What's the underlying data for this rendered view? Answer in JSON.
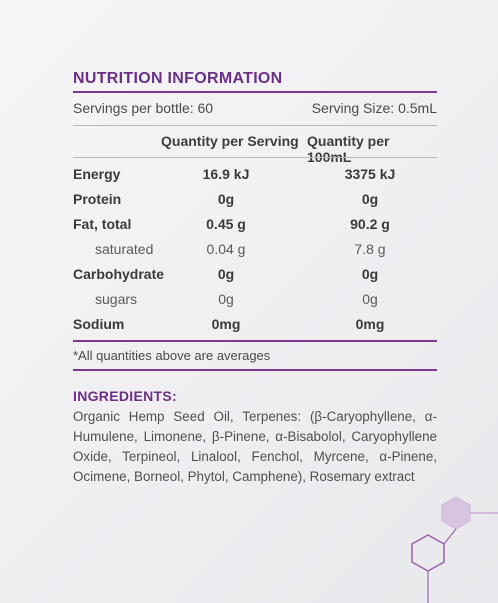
{
  "nutrition": {
    "title": "NUTRITION INFORMATION",
    "servings_per_bottle": "Servings per bottle: 60",
    "serving_size": "Serving Size: 0.5mL",
    "col_per_serving": "Quantity per Serving",
    "col_per_100ml": "Quantity per 100mL",
    "rows": [
      {
        "name": "Energy",
        "per_serving": "16.9 kJ",
        "per_100ml": "3375 kJ"
      },
      {
        "name": "Protein",
        "per_serving": "0g",
        "per_100ml": "0g"
      },
      {
        "name": "Fat, total",
        "per_serving": "0.45 g",
        "per_100ml": "90.2 g"
      },
      {
        "name": "saturated",
        "per_serving": "0.04 g",
        "per_100ml": "7.8 g"
      },
      {
        "name": "Carbohydrate",
        "per_serving": "0g",
        "per_100ml": "0g"
      },
      {
        "name": "sugars",
        "per_serving": "0g",
        "per_100ml": "0g"
      },
      {
        "name": "Sodium",
        "per_serving": "0mg",
        "per_100ml": "0mg"
      }
    ],
    "footnote": "*All quantities above are averages"
  },
  "ingredients": {
    "title": "INGREDIENTS:",
    "text": "Organic Hemp Seed Oil, Terpenes: (β-Caryophyllene, α-Humulene, Limonene, β-Pinene, α-Bisabolol, Caryophyllene Oxide, Terpineol, Linalool, Fenchol, Myrcene, α-Pinene, Ocimene, Borneol, Phytol, Camphene), Rosemary extract"
  },
  "colors": {
    "accent_purple": "#6b2f86",
    "rule_purple": "#7a3a92",
    "text_grey": "#4a4a4a"
  }
}
